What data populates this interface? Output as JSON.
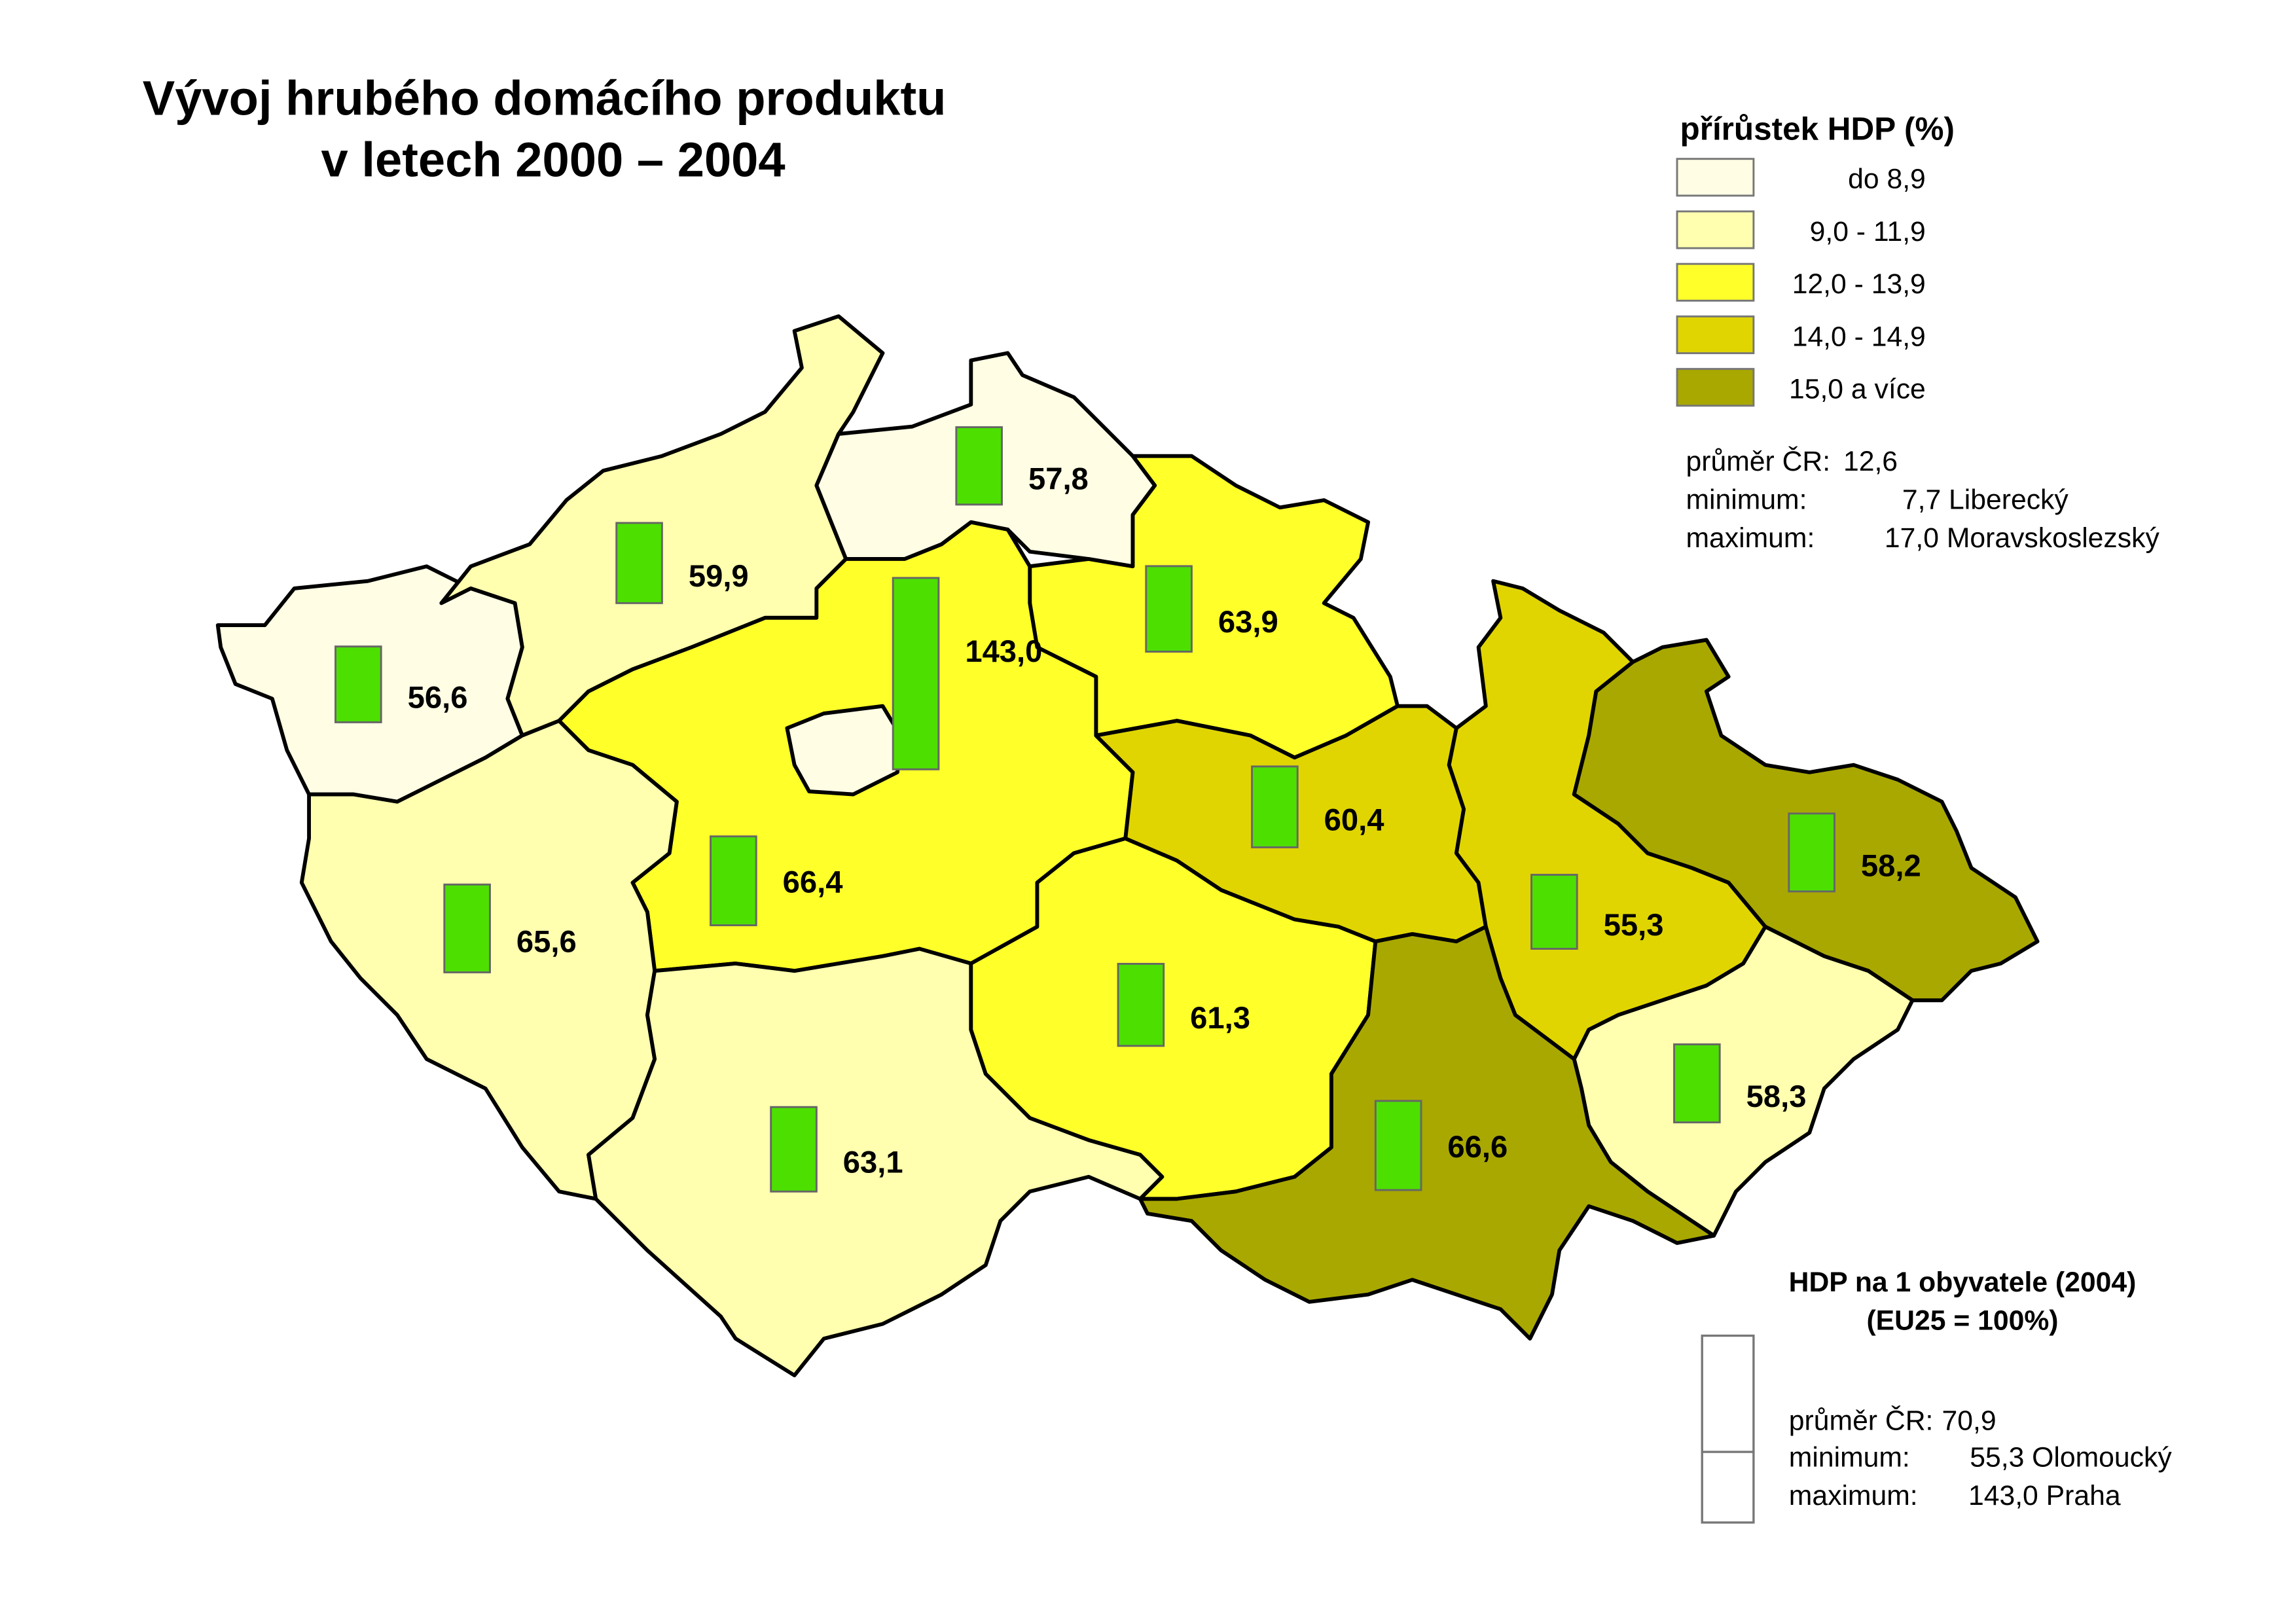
{
  "title": {
    "line1": "Vývoj hrubého domácího produktu",
    "line2": "v letech 2000 – 2004"
  },
  "growth_legend": {
    "title": "přírůstek HDP (%)",
    "classes": [
      {
        "label": "do 8,9",
        "color": "#fffde4"
      },
      {
        "label": "9,0 - 11,9",
        "color": "#ffffaf"
      },
      {
        "label": "12,0 - 13,9",
        "color": "#ffff2a"
      },
      {
        "label": "14,0 - 14,9",
        "color": "#e0d500"
      },
      {
        "label": "15,0 a více",
        "color": "#a9a800"
      }
    ],
    "stats": {
      "avg_label": "průměr ČR:",
      "avg_value": "12,6",
      "min_label": "minimum:",
      "min_value": "7,7 Liberecký",
      "max_label": "maximum:",
      "max_value": "17,0 Moravskoslezský"
    }
  },
  "gdp_legend": {
    "title": "HDP na 1 obyvatele (2004)",
    "subtitle": "(EU25 = 100%)",
    "stats": {
      "avg_label": "průměr ČR:",
      "avg_value": "70,9",
      "min_label": "minimum:",
      "min_value": "55,3 Olomoucký",
      "max_label": "maximum:",
      "max_value": "143,0 Praha"
    }
  },
  "bar_color": "#4ddf00",
  "regions": [
    {
      "id": "karlovarsky",
      "value": 56.6,
      "label": "56,6",
      "class": 0
    },
    {
      "id": "ustecky",
      "value": 59.9,
      "label": "59,9",
      "class": 1
    },
    {
      "id": "liberecky",
      "value": 57.8,
      "label": "57,8",
      "class": 0
    },
    {
      "id": "kralovehradecky",
      "value": 63.9,
      "label": "63,9",
      "class": 2
    },
    {
      "id": "stredocesky",
      "value": 66.4,
      "label": "66,4",
      "class": 2
    },
    {
      "id": "praha",
      "value": 143.0,
      "label": "143,0",
      "class": 0
    },
    {
      "id": "plzensky",
      "value": 65.6,
      "label": "65,6",
      "class": 1
    },
    {
      "id": "jihocesky",
      "value": 63.1,
      "label": "63,1",
      "class": 1
    },
    {
      "id": "vysocina",
      "value": 61.3,
      "label": "61,3",
      "class": 2
    },
    {
      "id": "pardubicky",
      "value": 60.4,
      "label": "60,4",
      "class": 3
    },
    {
      "id": "olomoucky",
      "value": 55.3,
      "label": "55,3",
      "class": 3
    },
    {
      "id": "moravskoslezsky",
      "value": 58.2,
      "label": "58,2",
      "class": 4
    },
    {
      "id": "zlinsky",
      "value": 58.3,
      "label": "58,3",
      "class": 1
    },
    {
      "id": "jihomoravsky",
      "value": 66.6,
      "label": "66,6",
      "class": 4
    }
  ]
}
